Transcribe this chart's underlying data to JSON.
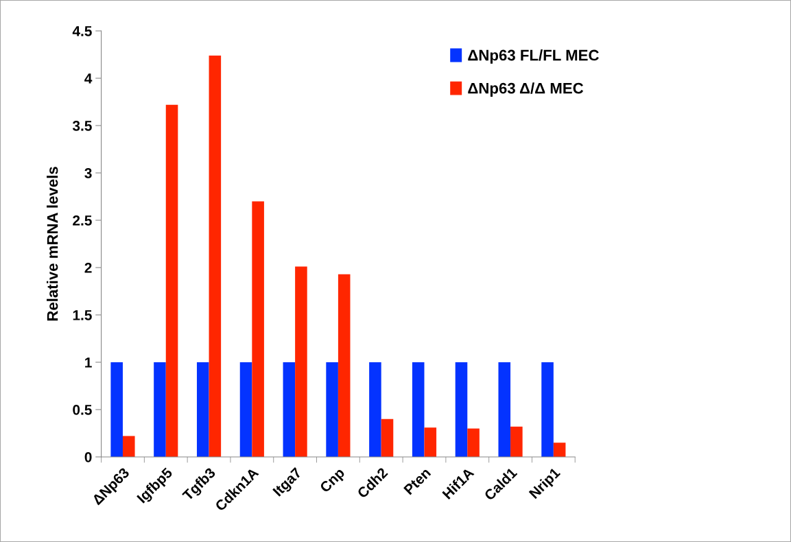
{
  "chart_data": {
    "type": "bar",
    "ylabel": "Relative mRNA levels",
    "categories": [
      "ΔNp63",
      "Igfbp5",
      "Tgfb3",
      "Cdkn1A",
      "Itga7",
      "Cnp",
      "Cdh2",
      "Pten",
      "Hif1A",
      "Cald1",
      "Nrip1"
    ],
    "series": [
      {
        "name": "ΔNp63 FL/FL MEC",
        "color": "#0433ff",
        "values": [
          1,
          1,
          1,
          1,
          1,
          1,
          1,
          1,
          1,
          1,
          1
        ]
      },
      {
        "name": "ΔNp63 Δ/Δ MEC",
        "color": "#ff2600",
        "values": [
          0.22,
          3.72,
          4.24,
          2.7,
          2.01,
          1.93,
          0.4,
          0.31,
          0.3,
          0.32,
          0.15
        ]
      }
    ],
    "ylim": [
      0,
      4.5
    ],
    "yticks": [
      0,
      0.5,
      1,
      1.5,
      2,
      2.5,
      3,
      3.5,
      4,
      4.5
    ],
    "grid": false,
    "legend": "top right"
  }
}
